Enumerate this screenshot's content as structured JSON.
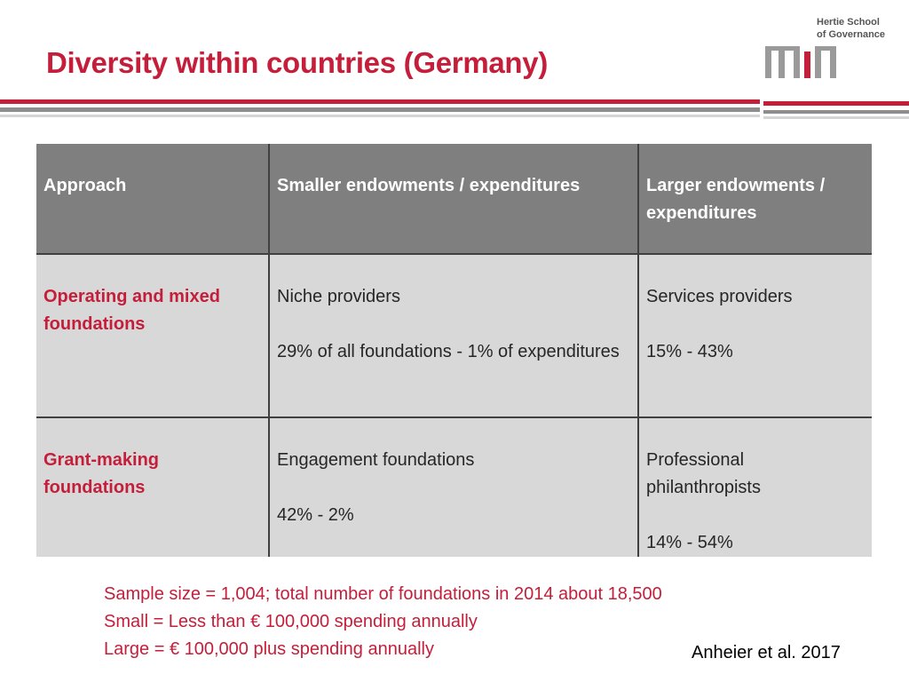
{
  "title": "Diversity within countries (Germany)",
  "logo": {
    "line1": "Hertie School",
    "line2": "of Governance"
  },
  "table": {
    "headers": [
      "Approach",
      "Smaller endowments / expenditures",
      "Larger endowments / expenditures"
    ],
    "rows": [
      {
        "label": "Operating and mixed foundations",
        "small": {
          "name": "Niche providers",
          "stat": "29% of all foundations  - 1% of expenditures"
        },
        "large": {
          "name": "Services providers",
          "stat": "15% - 43%"
        }
      },
      {
        "label": "Grant-making foundations",
        "small": {
          "name": "Engagement foundations",
          "stat": "42% - 2%"
        },
        "large": {
          "name": "Professional philanthropists",
          "stat": "14% - 54%"
        }
      }
    ]
  },
  "notes": [
    "Sample size = 1,004; total number of foundations in 2014 about 18,500",
    "Small = Less than  € 100,000 spending annually",
    "Large =  € 100,000 plus spending annually"
  ],
  "citation": "Anheier et al. 2017",
  "colors": {
    "accent": "#c41e3a",
    "header_bg": "#7f7f7f",
    "cell_bg": "#d8d8d8"
  }
}
